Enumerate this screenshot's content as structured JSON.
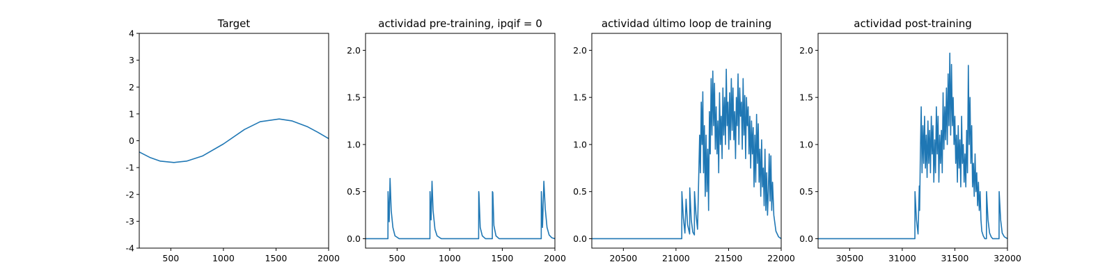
{
  "colors": {
    "series": "#1f77b4"
  },
  "chart_data": [
    {
      "type": "line",
      "title": "Target",
      "xlim": [
        200,
        2000
      ],
      "ylim": [
        -4,
        4
      ],
      "xticks": [
        500,
        1000,
        1500,
        2000
      ],
      "yticks": [
        -4,
        -3,
        -2,
        -1,
        0,
        1,
        2,
        3,
        4
      ],
      "series": [
        {
          "x": [
            200,
            300,
            400,
            530,
            650,
            800,
            1000,
            1200,
            1350,
            1530,
            1650,
            1800,
            1900,
            2000
          ],
          "y": [
            -0.42,
            -0.62,
            -0.76,
            -0.81,
            -0.76,
            -0.57,
            -0.12,
            0.42,
            0.71,
            0.81,
            0.74,
            0.52,
            0.31,
            0.08
          ]
        }
      ]
    },
    {
      "type": "line",
      "title": "actividad pre-training, ipqif = 0",
      "xlim": [
        200,
        2000
      ],
      "ylim": [
        -0.1,
        2.18
      ],
      "xticks": [
        500,
        1000,
        1500,
        2000
      ],
      "yticks": [
        0.0,
        0.5,
        1.0,
        1.5,
        2.0
      ],
      "series": [
        {
          "x": [
            200,
            413,
            414,
            425,
            433,
            444,
            460,
            480,
            520,
            812,
            813,
            823,
            832,
            842,
            860,
            880,
            920,
            1275,
            1276,
            1278,
            1290,
            1310,
            1340,
            1405,
            1406,
            1410,
            1420,
            1440,
            1470,
            1870,
            1871,
            1882,
            1895,
            1908,
            1925,
            1945,
            1970,
            2000
          ],
          "y": [
            0.0,
            0.0,
            0.5,
            0.18,
            0.64,
            0.3,
            0.12,
            0.03,
            0.0,
            0.0,
            0.5,
            0.2,
            0.61,
            0.3,
            0.1,
            0.03,
            0.0,
            0.0,
            0.5,
            0.48,
            0.12,
            0.03,
            0.0,
            0.0,
            0.5,
            0.49,
            0.14,
            0.03,
            0.0,
            0.0,
            0.5,
            0.12,
            0.61,
            0.32,
            0.12,
            0.04,
            0.01,
            0.0
          ]
        }
      ]
    },
    {
      "type": "line",
      "title": "actividad último loop de training",
      "xlim": [
        20200,
        22000
      ],
      "ylim": [
        -0.1,
        2.18
      ],
      "xticks": [
        20500,
        21000,
        21500,
        22000
      ],
      "yticks": [
        0.0,
        0.5,
        1.0,
        1.5,
        2.0
      ],
      "series": [
        {
          "x": [
            20200,
            21055,
            21056,
            21070,
            21085,
            21096,
            21110,
            21130,
            21131,
            21145,
            21160,
            21175,
            21176,
            21190,
            21205,
            21215,
            21225,
            21232,
            21240,
            21248,
            21255,
            21262,
            21270,
            21278,
            21286,
            21294,
            21302,
            21310,
            21318,
            21326,
            21334,
            21342,
            21350,
            21358,
            21366,
            21374,
            21382,
            21390,
            21398,
            21406,
            21414,
            21422,
            21430,
            21438,
            21446,
            21454,
            21462,
            21470,
            21478,
            21486,
            21494,
            21502,
            21510,
            21518,
            21526,
            21534,
            21542,
            21550,
            21558,
            21566,
            21574,
            21582,
            21590,
            21598,
            21606,
            21614,
            21622,
            21630,
            21638,
            21646,
            21654,
            21662,
            21670,
            21678,
            21686,
            21694,
            21702,
            21710,
            21718,
            21726,
            21734,
            21742,
            21750,
            21758,
            21766,
            21774,
            21782,
            21790,
            21798,
            21806,
            21814,
            21822,
            21830,
            21838,
            21846,
            21854,
            21862,
            21870,
            21878,
            21886,
            21894,
            21902,
            21910,
            21918,
            21930,
            21950,
            21975,
            22000
          ],
          "y": [
            0.0,
            0.0,
            0.5,
            0.22,
            0.06,
            0.42,
            0.15,
            0.05,
            0.54,
            0.2,
            0.07,
            0.04,
            0.5,
            0.26,
            0.1,
            0.6,
            1.1,
            0.7,
            1.45,
            1.0,
            1.56,
            0.7,
            1.2,
            0.45,
            1.1,
            0.5,
            0.95,
            0.3,
            1.35,
            0.9,
            1.7,
            1.1,
            1.78,
            1.2,
            1.65,
            0.95,
            1.4,
            0.9,
            1.25,
            0.7,
            1.55,
            1.0,
            1.3,
            0.85,
            1.6,
            1.1,
            1.5,
            1.0,
            1.8,
            1.2,
            1.45,
            0.95,
            1.55,
            1.05,
            1.7,
            1.15,
            1.6,
            1.05,
            1.35,
            0.85,
            1.5,
            1.2,
            1.75,
            1.0,
            1.6,
            1.3,
            1.45,
            0.95,
            1.7,
            1.1,
            1.52,
            0.85,
            1.5,
            1.2,
            1.4,
            0.9,
            1.3,
            0.75,
            1.25,
            0.9,
            1.18,
            0.55,
            1.1,
            0.6,
            1.32,
            0.8,
            1.22,
            0.6,
            0.95,
            0.45,
            1.05,
            0.55,
            0.75,
            0.35,
            0.95,
            0.3,
            0.7,
            0.25,
            0.5,
            0.9,
            0.4,
            0.88,
            0.3,
            0.6,
            0.25,
            0.08,
            0.02,
            0.0
          ]
        }
      ]
    },
    {
      "type": "line",
      "title": "actividad post-training",
      "xlim": [
        30200,
        32000
      ],
      "ylim": [
        -0.1,
        2.18
      ],
      "xticks": [
        30500,
        31000,
        31500,
        32000
      ],
      "yticks": [
        0.0,
        0.5,
        1.0,
        1.5,
        2.0
      ],
      "series": [
        {
          "x": [
            30200,
            31120,
            31121,
            31135,
            31150,
            31162,
            31165,
            31172,
            31180,
            31188,
            31196,
            31204,
            31212,
            31220,
            31228,
            31236,
            31244,
            31252,
            31260,
            31268,
            31276,
            31284,
            31292,
            31300,
            31308,
            31316,
            31324,
            31332,
            31340,
            31348,
            31356,
            31364,
            31372,
            31380,
            31388,
            31396,
            31404,
            31412,
            31420,
            31428,
            31436,
            31444,
            31452,
            31460,
            31468,
            31476,
            31484,
            31492,
            31500,
            31508,
            31516,
            31524,
            31532,
            31540,
            31548,
            31556,
            31564,
            31572,
            31580,
            31588,
            31596,
            31604,
            31612,
            31620,
            31628,
            31636,
            31644,
            31652,
            31660,
            31668,
            31676,
            31684,
            31692,
            31700,
            31708,
            31716,
            31724,
            31732,
            31740,
            31748,
            31756,
            31770,
            31785,
            31800,
            31801,
            31815,
            31830,
            31845,
            31860,
            31880,
            31920,
            31921,
            31935,
            31950,
            31970,
            32000
          ],
          "y": [
            0.0,
            0.0,
            0.5,
            0.2,
            0.05,
            0.56,
            0.3,
            0.9,
            1.4,
            0.7,
            1.2,
            0.8,
            1.3,
            0.75,
            1.1,
            0.65,
            1.25,
            0.8,
            1.15,
            0.7,
            1.3,
            0.9,
            1.2,
            0.6,
            1.05,
            0.7,
            1.4,
            0.9,
            1.3,
            0.6,
            1.1,
            0.8,
            1.15,
            0.7,
            1.55,
            0.95,
            1.4,
            1.05,
            1.6,
            1.0,
            1.75,
            1.2,
            1.97,
            1.1,
            1.85,
            1.2,
            1.5,
            1.0,
            1.3,
            0.8,
            1.1,
            0.6,
            1.2,
            0.75,
            1.05,
            0.55,
            1.3,
            0.8,
            1.0,
            0.6,
            0.9,
            0.55,
            1.15,
            0.7,
            1.84,
            1.0,
            1.5,
            0.8,
            1.2,
            0.55,
            0.8,
            0.45,
            0.9,
            0.5,
            0.7,
            0.35,
            0.6,
            0.3,
            0.5,
            0.2,
            0.08,
            0.03,
            0.0,
            0.0,
            0.5,
            0.2,
            0.06,
            0.02,
            0.0,
            0.0,
            0.0,
            0.5,
            0.2,
            0.06,
            0.02,
            0.0
          ]
        }
      ]
    }
  ]
}
